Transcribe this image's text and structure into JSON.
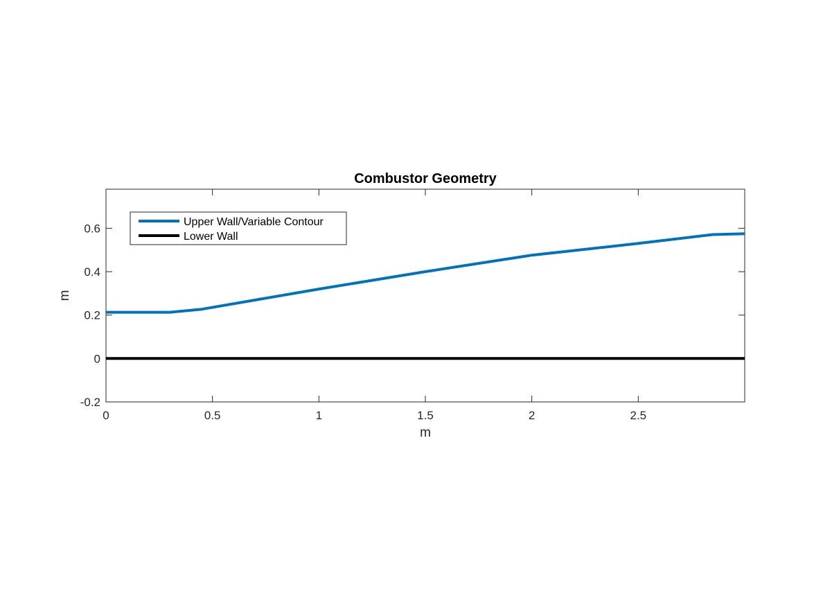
{
  "chart_data": {
    "type": "line",
    "title": "Combustor Geometry",
    "xlabel": "m",
    "ylabel": "m",
    "xlim": [
      0,
      3
    ],
    "ylim": [
      -0.2,
      0.78
    ],
    "xticks": [
      0,
      0.5,
      1,
      1.5,
      2,
      2.5
    ],
    "xtick_labels": [
      "0",
      "0.5",
      "1",
      "1.5",
      "2",
      "2.5"
    ],
    "yticks": [
      -0.2,
      0,
      0.2,
      0.4,
      0.6
    ],
    "ytick_labels": [
      "-0.2",
      "0",
      "0.2",
      "0.4",
      "0.6"
    ],
    "grid": false,
    "legend": "top-left",
    "series": [
      {
        "name": "Upper Wall/Variable Contour",
        "color": "#0072BD",
        "x": [
          0,
          0.3,
          0.45,
          1.0,
          1.5,
          2.0,
          2.5,
          2.85,
          3.0
        ],
        "y": [
          0.213,
          0.213,
          0.227,
          0.32,
          0.4,
          0.476,
          0.53,
          0.571,
          0.575
        ]
      },
      {
        "name": "Lower Wall",
        "color": "#000000",
        "x": [
          0,
          3.0
        ],
        "y": [
          0,
          0
        ]
      }
    ]
  }
}
